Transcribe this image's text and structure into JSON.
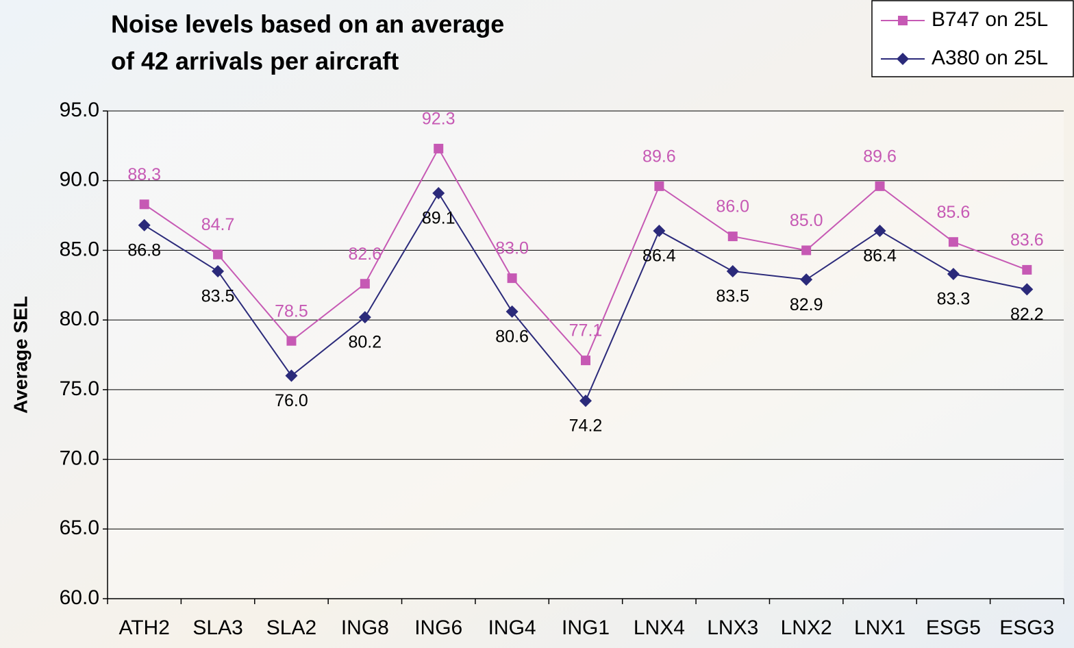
{
  "chart_data": {
    "type": "line",
    "title": [
      "Noise levels based on an average",
      "of 42 arrivals per aircraft"
    ],
    "y_label": "Average SEL",
    "categories": [
      "ATH2",
      "SLA3",
      "SLA2",
      "ING8",
      "ING6",
      "ING4",
      "ING1",
      "LNX4",
      "LNX3",
      "LNX2",
      "LNX1",
      "ESG5",
      "ESG3"
    ],
    "series": [
      {
        "name": "B747 on 25L",
        "color": "#c659b4",
        "marker": "square",
        "values": [
          88.3,
          84.7,
          78.5,
          82.6,
          92.3,
          83.0,
          77.1,
          89.6,
          86.0,
          85.0,
          89.6,
          85.6,
          83.6
        ],
        "value_labels": [
          "88.3",
          "84.7",
          "78.5",
          "82.6",
          "92.3",
          "83.0",
          "77.1",
          "89.6",
          "86.0",
          "85.0",
          "89.6",
          "85.6",
          "83.6"
        ]
      },
      {
        "name": "A380 on 25L",
        "color": "#2b2a7a",
        "marker": "diamond",
        "values": [
          86.8,
          83.5,
          76.0,
          80.2,
          89.1,
          80.6,
          74.2,
          86.4,
          83.5,
          82.9,
          86.4,
          83.3,
          82.2
        ],
        "value_labels": [
          "86.8",
          "83.5",
          "76.0",
          "80.2",
          "89.1",
          "80.6",
          "74.2",
          "86.4",
          "83.5",
          "82.9",
          "86.4",
          "83.3",
          "82.2"
        ]
      }
    ],
    "ylim": [
      60,
      95
    ],
    "yticks": [
      {
        "value": 60,
        "label": "60.0"
      },
      {
        "value": 65,
        "label": "65.0"
      },
      {
        "value": 70,
        "label": "70.0"
      },
      {
        "value": 75,
        "label": "75.0"
      },
      {
        "value": 80,
        "label": "80.0"
      },
      {
        "value": 85,
        "label": "85.0"
      },
      {
        "value": 90,
        "label": "90.0"
      },
      {
        "value": 95,
        "label": "95.0"
      }
    ],
    "grid": true,
    "legend": "top-right"
  }
}
